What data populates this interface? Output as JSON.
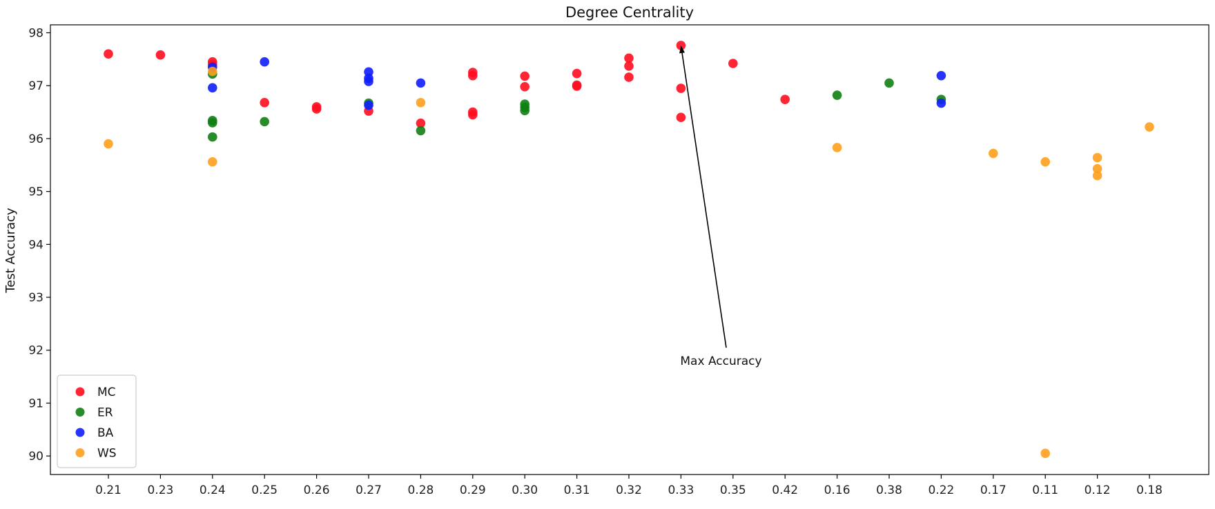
{
  "chart_data": {
    "type": "scatter",
    "title": "Degree Centrality",
    "xlabel": "",
    "ylabel": "Test Accuracy",
    "categories": [
      "0.21",
      "0.23",
      "0.24",
      "0.25",
      "0.26",
      "0.27",
      "0.28",
      "0.29",
      "0.30",
      "0.31",
      "0.32",
      "0.33",
      "0.35",
      "0.42",
      "0.16",
      "0.38",
      "0.22",
      "0.17",
      "0.11",
      "0.12",
      "0.18"
    ],
    "y_ticks": [
      90,
      91,
      92,
      93,
      94,
      95,
      96,
      97,
      98
    ],
    "ylim": [
      89.65,
      98.15
    ],
    "grid": false,
    "legend": "lower-left",
    "series": [
      {
        "name": "MC",
        "color": "#ff0d1f",
        "points": [
          [
            "0.21",
            97.6
          ],
          [
            "0.23",
            97.58
          ],
          [
            "0.24",
            97.45
          ],
          [
            "0.24",
            97.4
          ],
          [
            "0.25",
            96.68
          ],
          [
            "0.26",
            96.6
          ],
          [
            "0.26",
            96.56
          ],
          [
            "0.27",
            96.52
          ],
          [
            "0.28",
            96.29
          ],
          [
            "0.29",
            97.25
          ],
          [
            "0.29",
            97.19
          ],
          [
            "0.29",
            96.5
          ],
          [
            "0.29",
            96.45
          ],
          [
            "0.30",
            97.18
          ],
          [
            "0.30",
            96.98
          ],
          [
            "0.31",
            97.23
          ],
          [
            "0.31",
            97.01
          ],
          [
            "0.31",
            96.99
          ],
          [
            "0.32",
            97.52
          ],
          [
            "0.32",
            97.37
          ],
          [
            "0.32",
            97.16
          ],
          [
            "0.33",
            97.76
          ],
          [
            "0.33",
            96.95
          ],
          [
            "0.33",
            96.4
          ],
          [
            "0.35",
            97.42
          ],
          [
            "0.42",
            96.74
          ]
        ]
      },
      {
        "name": "ER",
        "color": "#0f7f12",
        "points": [
          [
            "0.24",
            97.22
          ],
          [
            "0.24",
            96.34
          ],
          [
            "0.24",
            96.3
          ],
          [
            "0.24",
            96.03
          ],
          [
            "0.25",
            96.32
          ],
          [
            "0.27",
            96.67
          ],
          [
            "0.28",
            96.15
          ],
          [
            "0.30",
            96.65
          ],
          [
            "0.30",
            96.59
          ],
          [
            "0.30",
            96.53
          ],
          [
            "0.16",
            96.82
          ],
          [
            "0.38",
            97.05
          ],
          [
            "0.22",
            96.74
          ]
        ]
      },
      {
        "name": "BA",
        "color": "#0f1eff",
        "points": [
          [
            "0.24",
            97.35
          ],
          [
            "0.24",
            96.96
          ],
          [
            "0.25",
            97.45
          ],
          [
            "0.27",
            97.26
          ],
          [
            "0.27",
            97.14
          ],
          [
            "0.27",
            97.08
          ],
          [
            "0.27",
            96.63
          ],
          [
            "0.28",
            97.05
          ],
          [
            "0.22",
            97.19
          ],
          [
            "0.22",
            96.67
          ]
        ]
      },
      {
        "name": "WS",
        "color": "#ffa01f",
        "points": [
          [
            "0.21",
            95.9
          ],
          [
            "0.24",
            97.27
          ],
          [
            "0.24",
            95.56
          ],
          [
            "0.28",
            96.68
          ],
          [
            "0.16",
            95.83
          ],
          [
            "0.17",
            95.72
          ],
          [
            "0.11",
            95.56
          ],
          [
            "0.11",
            90.05
          ],
          [
            "0.12",
            95.64
          ],
          [
            "0.12",
            95.43
          ],
          [
            "0.12",
            95.3
          ],
          [
            "0.18",
            96.22
          ]
        ]
      }
    ],
    "annotations": [
      {
        "text": "Max Accuracy",
        "x": "0.33",
        "y": 97.76,
        "text_anchor_x": "0.33",
        "text_anchor_y": 91.8
      }
    ]
  }
}
